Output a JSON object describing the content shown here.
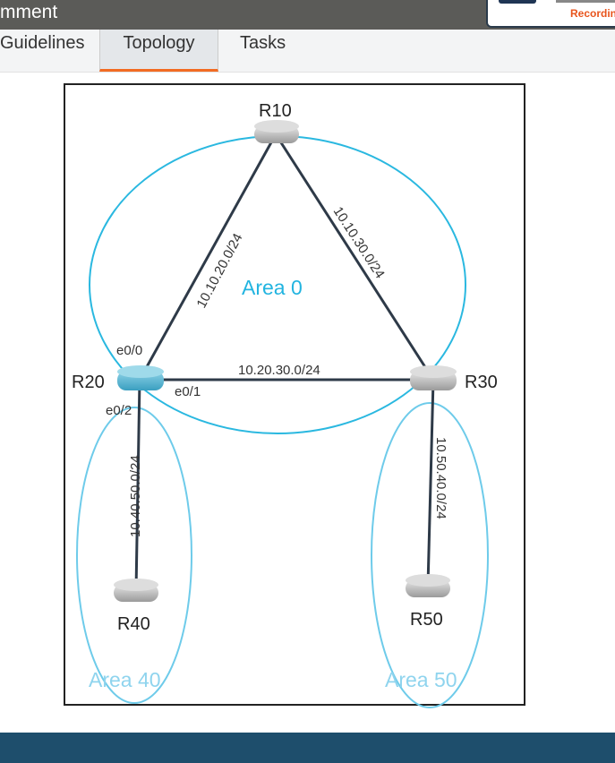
{
  "header": {
    "title": "mment",
    "recording_label": "Recordin"
  },
  "tabs": [
    {
      "label": "Guidelines"
    },
    {
      "label": "Topology",
      "active": true
    },
    {
      "label": "Tasks"
    }
  ],
  "accent_color": "#f26b22",
  "diagram": {
    "routers": {
      "r10": "R10",
      "r20": "R20",
      "r30": "R30",
      "r40": "R40",
      "r50": "R50"
    },
    "links": {
      "r10_r20": "10.10.20.0/24",
      "r10_r30": "10.10.30.0/24",
      "r20_r30": "10.20.30.0/24",
      "r20_r40": "10.40.50.0/24",
      "r30_r50": "10.50.40.0/24"
    },
    "interfaces": {
      "e00": "e0/0",
      "e01": "e0/1",
      "e02": "e0/2"
    },
    "areas": {
      "a0": "Area 0",
      "a40": "Area 40",
      "a50": "Area 50"
    }
  }
}
